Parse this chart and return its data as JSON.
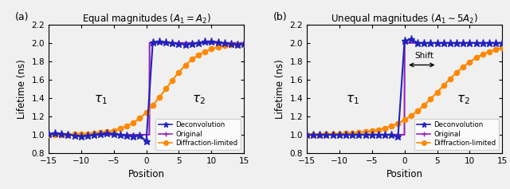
{
  "title_a": "Equal magnitudes ($A_1 = A_2$)",
  "title_b": "Unequal magnitudes ($A_1 \\sim 5A_2$)",
  "xlabel": "Position",
  "ylabel": "Lifetime (ns)",
  "xlim": [
    -15,
    15
  ],
  "ylim": [
    0.8,
    2.2
  ],
  "yticks": [
    0.8,
    1.0,
    1.2,
    1.4,
    1.6,
    1.8,
    2.0,
    2.2
  ],
  "xticks": [
    -15,
    -10,
    -5,
    0,
    5,
    10,
    15
  ],
  "color_deconv": "#2222bb",
  "color_original": "#9922bb",
  "color_diffraction": "#ff8800",
  "label_deconv": "Deconvolution",
  "label_original": "Original",
  "label_diffraction": "Diffraction-limited",
  "bg_color": "#f0f0f0"
}
